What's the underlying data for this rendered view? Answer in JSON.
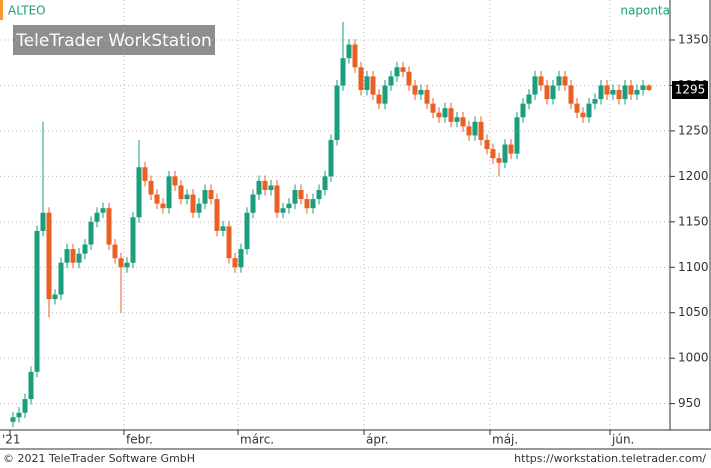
{
  "chart_data": {
    "type": "candlestick",
    "title": "ALTEO",
    "interval": "naponta",
    "logo": "TeleTrader WorkStation",
    "copyright": "© 2021 TeleTrader Software GmbH",
    "url": "https://workstation.teletrader.com/",
    "last_value": 1295,
    "up_color": "#1a9e7c",
    "down_color": "#ea5f24",
    "ylim": [
      921,
      1394
    ],
    "yticks": [
      950,
      1000,
      1050,
      1100,
      1150,
      1200,
      1250,
      1300,
      1350
    ],
    "grid": true,
    "categories": [
      "'21",
      null,
      null,
      null,
      null,
      null,
      null,
      null,
      null,
      null,
      null,
      null,
      null,
      null,
      null,
      null,
      null,
      null,
      null,
      "febr.",
      null,
      null,
      null,
      null,
      null,
      null,
      null,
      null,
      null,
      null,
      null,
      null,
      null,
      null,
      null,
      null,
      null,
      null,
      "márc.",
      null,
      null,
      null,
      null,
      null,
      null,
      null,
      null,
      null,
      null,
      null,
      null,
      null,
      null,
      null,
      null,
      null,
      null,
      null,
      null,
      "ápr.",
      null,
      null,
      null,
      null,
      null,
      null,
      null,
      null,
      null,
      null,
      null,
      null,
      null,
      null,
      null,
      null,
      null,
      null,
      null,
      null,
      "máj.",
      null,
      null,
      null,
      null,
      null,
      null,
      null,
      null,
      null,
      null,
      null,
      null,
      null,
      null,
      null,
      null,
      null,
      null,
      null,
      "jún.",
      null,
      null,
      null,
      null,
      null,
      null
    ],
    "open": [
      930,
      935,
      940,
      955,
      985,
      1140,
      1160,
      1065,
      1070,
      1105,
      1120,
      1105,
      1115,
      1125,
      1150,
      1160,
      1165,
      1125,
      1110,
      1100,
      1105,
      1155,
      1210,
      1195,
      1180,
      1170,
      1165,
      1200,
      1190,
      1175,
      1180,
      1160,
      1170,
      1185,
      1175,
      1140,
      1145,
      1110,
      1100,
      1120,
      1160,
      1180,
      1195,
      1185,
      1190,
      1160,
      1165,
      1170,
      1185,
      1175,
      1165,
      1175,
      1185,
      1200,
      1240,
      1300,
      1330,
      1345,
      1320,
      1295,
      1310,
      1290,
      1280,
      1300,
      1310,
      1320,
      1315,
      1300,
      1290,
      1295,
      1280,
      1270,
      1265,
      1275,
      1260,
      1265,
      1255,
      1245,
      1260,
      1240,
      1230,
      1220,
      1215,
      1235,
      1225,
      1265,
      1280,
      1290,
      1310,
      1300,
      1285,
      1300,
      1310,
      1300,
      1280,
      1270,
      1265,
      1280,
      1285,
      1300,
      1290,
      1295,
      1285,
      1300,
      1290,
      1295,
      1300
    ],
    "high": [
      941,
      946,
      961,
      991,
      1146,
      1260,
      1166,
      1076,
      1111,
      1126,
      1126,
      1121,
      1131,
      1156,
      1166,
      1171,
      1171,
      1131,
      1116,
      1111,
      1161,
      1240,
      1216,
      1201,
      1186,
      1176,
      1206,
      1206,
      1196,
      1186,
      1186,
      1176,
      1191,
      1191,
      1181,
      1151,
      1151,
      1116,
      1126,
      1166,
      1186,
      1201,
      1201,
      1196,
      1196,
      1171,
      1176,
      1191,
      1191,
      1181,
      1181,
      1191,
      1206,
      1246,
      1306,
      1370,
      1351,
      1351,
      1326,
      1316,
      1316,
      1296,
      1306,
      1316,
      1326,
      1326,
      1321,
      1306,
      1301,
      1301,
      1286,
      1276,
      1281,
      1281,
      1271,
      1271,
      1261,
      1266,
      1266,
      1246,
      1236,
      1226,
      1241,
      1241,
      1271,
      1286,
      1296,
      1316,
      1316,
      1306,
      1306,
      1316,
      1316,
      1306,
      1286,
      1276,
      1286,
      1291,
      1306,
      1306,
      1301,
      1301,
      1306,
      1306,
      1301,
      1306,
      1301
    ],
    "low": [
      924,
      929,
      934,
      949,
      979,
      1134,
      1045,
      1059,
      1064,
      1099,
      1099,
      1099,
      1109,
      1119,
      1144,
      1154,
      1119,
      1104,
      1050,
      1094,
      1099,
      1149,
      1189,
      1174,
      1164,
      1159,
      1159,
      1184,
      1169,
      1169,
      1154,
      1154,
      1164,
      1169,
      1134,
      1134,
      1104,
      1094,
      1094,
      1114,
      1154,
      1174,
      1179,
      1179,
      1154,
      1154,
      1159,
      1164,
      1169,
      1159,
      1159,
      1169,
      1179,
      1194,
      1234,
      1294,
      1324,
      1314,
      1289,
      1289,
      1284,
      1274,
      1274,
      1294,
      1304,
      1309,
      1294,
      1284,
      1284,
      1274,
      1264,
      1259,
      1259,
      1254,
      1254,
      1249,
      1239,
      1239,
      1234,
      1224,
      1214,
      1200,
      1209,
      1219,
      1219,
      1259,
      1274,
      1284,
      1294,
      1279,
      1279,
      1294,
      1294,
      1274,
      1264,
      1259,
      1259,
      1274,
      1279,
      1284,
      1284,
      1279,
      1279,
      1284,
      1284,
      1289,
      1294
    ],
    "close": [
      935,
      940,
      955,
      985,
      1140,
      1160,
      1065,
      1070,
      1105,
      1120,
      1105,
      1115,
      1125,
      1150,
      1160,
      1165,
      1125,
      1110,
      1100,
      1105,
      1155,
      1210,
      1195,
      1180,
      1170,
      1165,
      1200,
      1190,
      1175,
      1180,
      1160,
      1170,
      1185,
      1175,
      1140,
      1145,
      1110,
      1100,
      1120,
      1160,
      1180,
      1195,
      1185,
      1190,
      1160,
      1165,
      1170,
      1185,
      1175,
      1165,
      1175,
      1185,
      1200,
      1240,
      1300,
      1330,
      1345,
      1320,
      1295,
      1310,
      1290,
      1280,
      1300,
      1310,
      1320,
      1315,
      1300,
      1290,
      1295,
      1280,
      1270,
      1265,
      1275,
      1260,
      1265,
      1255,
      1245,
      1260,
      1240,
      1230,
      1220,
      1215,
      1235,
      1225,
      1265,
      1280,
      1290,
      1310,
      1300,
      1285,
      1300,
      1310,
      1300,
      1280,
      1270,
      1265,
      1280,
      1285,
      1300,
      1290,
      1295,
      1285,
      1300,
      1290,
      1295,
      1300,
      1295
    ]
  }
}
